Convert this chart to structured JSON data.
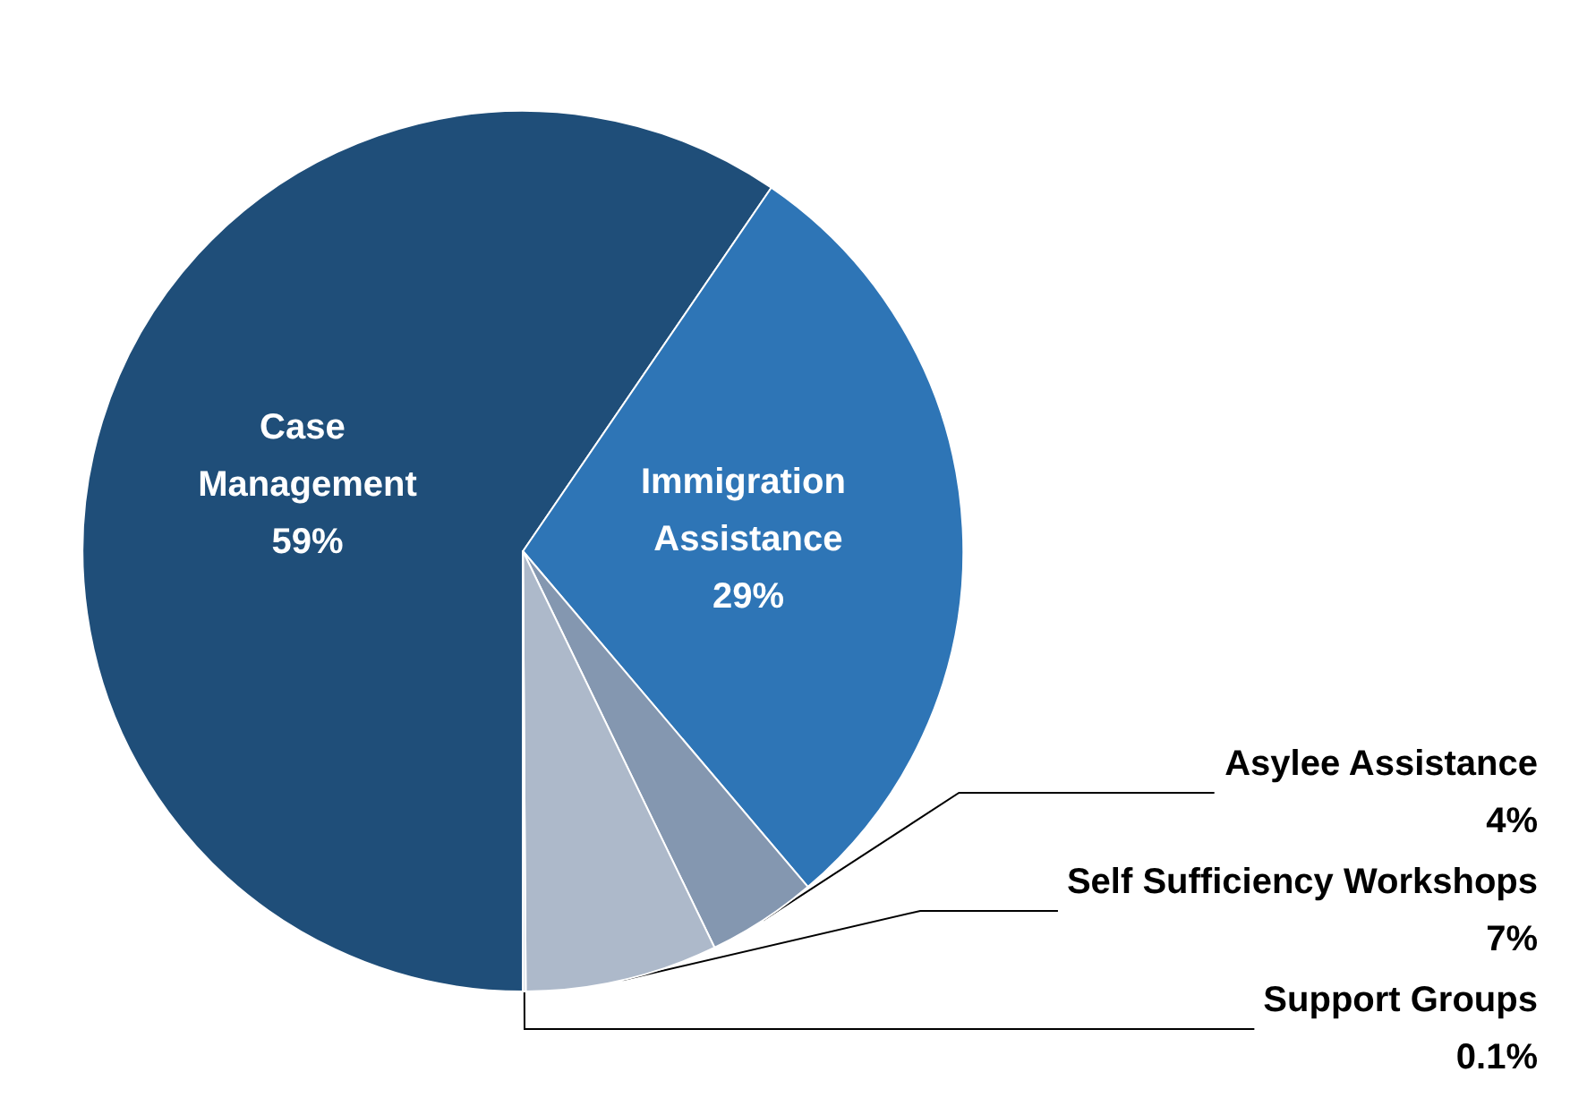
{
  "chart_data": {
    "type": "pie",
    "categories": [
      "Case Management",
      "Immigration Assistance",
      "Asylee Assistance",
      "Self Sufficiency Workshops",
      "Support Groups"
    ],
    "values": [
      59,
      29,
      4,
      7,
      0.1
    ],
    "colors": [
      "#1f4e79",
      "#2e75b6",
      "#8497b0",
      "#adb9ca",
      "#d6dce5"
    ],
    "value_labels": [
      "59%",
      "29%",
      "4%",
      "7%",
      "0.1%"
    ],
    "legend": false
  }
}
